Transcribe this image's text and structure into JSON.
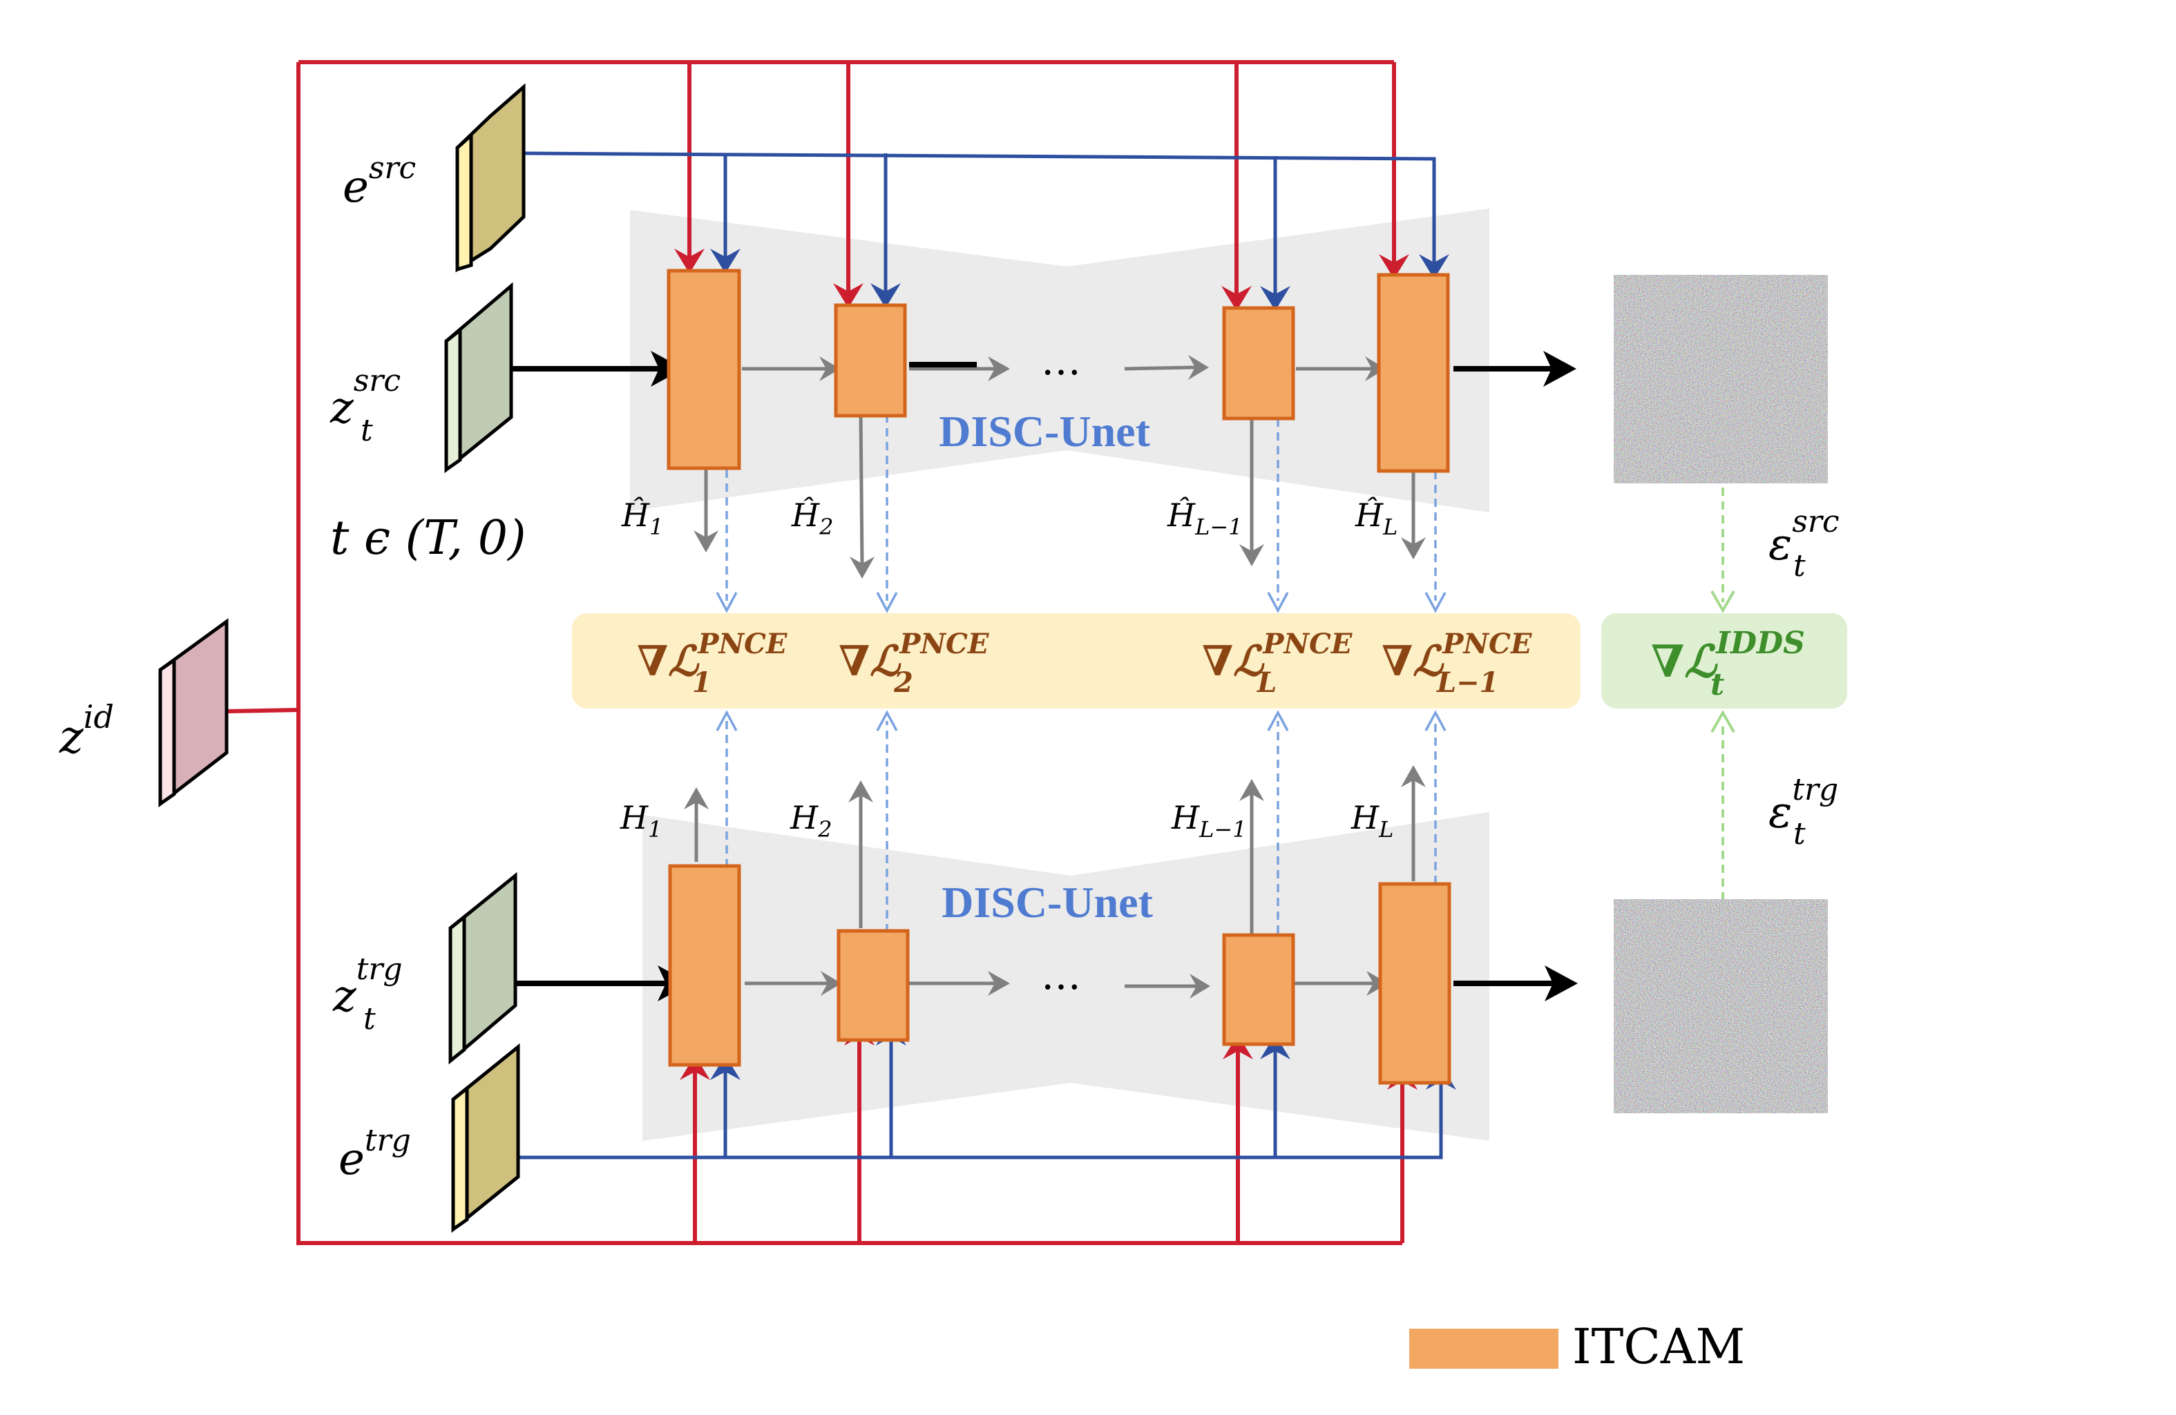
{
  "colors": {
    "itcam_fill": "#F2A862",
    "itcam_stroke": "#D4651C",
    "red_line": "#CC1E2E",
    "blue_line": "#2E4FA0",
    "gray_arrow": "#7F7F7F",
    "dashed_blue": "#7BA3E0",
    "dashed_green": "#A3D98C",
    "unet_bg": "#EBEBEB",
    "loss_panel": "#FDEFC6",
    "idds_panel": "#DFF0D2",
    "unet_label": "#4F7BD1",
    "pnce_text": "#8B4513",
    "idds_text": "#3E8E2B",
    "e_block": "#CFC07E",
    "z_block": "#BFCBB3",
    "zid_block": "#D7B1B7"
  },
  "inputs": {
    "e_src": {
      "base": "e",
      "sup": "src"
    },
    "z_src": {
      "base": "z",
      "sub": "t",
      "sup": "src"
    },
    "timestep": "t ϵ (T, 0)",
    "z_id": {
      "base": "z",
      "sup": "id"
    },
    "z_trg": {
      "base": "z",
      "sub": "t",
      "sup": "trg"
    },
    "e_trg": {
      "base": "e",
      "sup": "trg"
    }
  },
  "unet": {
    "top_label": "DISC-Unet",
    "bottom_label": "DISC-Unet",
    "ellipsis": "…"
  },
  "features_src": [
    {
      "base": "Ĥ",
      "sub": "1"
    },
    {
      "base": "Ĥ",
      "sub": "2"
    },
    {
      "base": "Ĥ",
      "sub": "L−1"
    },
    {
      "base": "Ĥ",
      "sub": "L"
    }
  ],
  "features_trg": [
    {
      "base": "H",
      "sub": "1"
    },
    {
      "base": "H",
      "sub": "2"
    },
    {
      "base": "H",
      "sub": "L−1"
    },
    {
      "base": "H",
      "sub": "L"
    }
  ],
  "losses": [
    {
      "prefix": "∇ℒ",
      "sub": "1",
      "sup": "PNCE"
    },
    {
      "prefix": "∇ℒ",
      "sub": "2",
      "sup": "PNCE"
    },
    {
      "prefix": "∇ℒ",
      "sub": "L",
      "sup": "PNCE"
    },
    {
      "prefix": "∇ℒ",
      "sub": "L−1",
      "sup": "PNCE"
    }
  ],
  "idds_loss": {
    "prefix": "∇ℒ",
    "sub": "t",
    "sup": "IDDS"
  },
  "noise": {
    "src": {
      "base": "ε",
      "sub": "t",
      "sup": "src"
    },
    "trg": {
      "base": "ε",
      "sub": "t",
      "sup": "trg"
    }
  },
  "legend": {
    "label": "ITCAM"
  }
}
